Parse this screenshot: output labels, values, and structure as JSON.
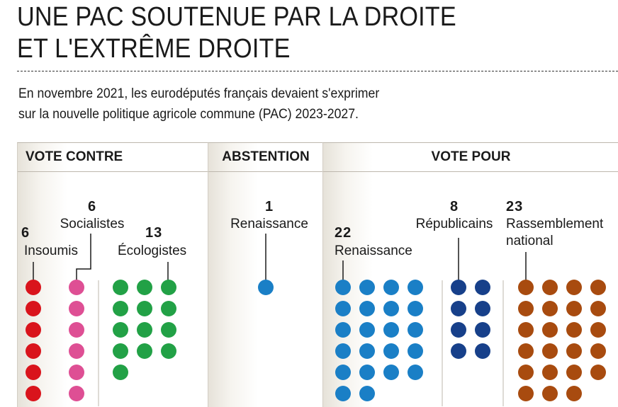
{
  "header": {
    "title_line1": "UNE PAC SOUTENUE PAR LA DROITE",
    "title_line2": "ET L'EXTRÊME DROITE",
    "subtitle_line1": "En novembre 2021, les eurodéputés français devaient s'exprimer",
    "subtitle_line2": "sur la nouvelle politique agricole commune (PAC) 2023-2027."
  },
  "panels": {
    "contre": "VOTE CONTRE",
    "abstention": "ABSTENTION",
    "pour": "VOTE POUR"
  },
  "chart_data": {
    "type": "dot-matrix",
    "unit": "eurodéputés",
    "groups": [
      {
        "vote": "VOTE CONTRE",
        "party": "Insoumis",
        "count": 6,
        "color": "#d9141c"
      },
      {
        "vote": "VOTE CONTRE",
        "party": "Socialistes",
        "count": 6,
        "color": "#de4f94"
      },
      {
        "vote": "VOTE CONTRE",
        "party": "Écologistes",
        "count": 13,
        "color": "#22a146"
      },
      {
        "vote": "ABSTENTION",
        "party": "Renaissance",
        "count": 1,
        "color": "#1a7fc6"
      },
      {
        "vote": "VOTE POUR",
        "party": "Renaissance",
        "count": 22,
        "color": "#1a7fc6"
      },
      {
        "vote": "VOTE POUR",
        "party": "Républicains",
        "count": 8,
        "color": "#17408a"
      },
      {
        "vote": "VOTE POUR",
        "party": "Rassemblement national",
        "count": 23,
        "color": "#a84b0f"
      }
    ]
  }
}
